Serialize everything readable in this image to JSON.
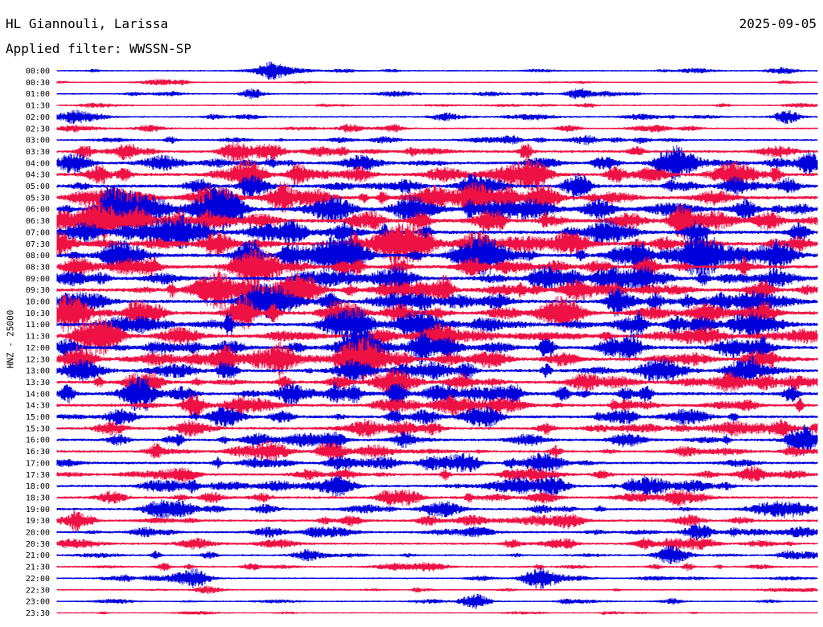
{
  "header": {
    "station": "HL Giannouli, Larissa",
    "date": "2025-09-05",
    "filter": "Applied filter: WWSSN-SP"
  },
  "chart_data": {
    "type": "line",
    "title": "HL Giannouli, Larissa",
    "subtitle": "Applied filter: WWSSN-SP",
    "date": "2025-09-05",
    "ylabel": "HNZ - 25000",
    "line_labels": [
      "00:00",
      "00:30",
      "01:00",
      "01:30",
      "02:00",
      "02:30",
      "03:00",
      "03:30",
      "04:00",
      "04:30",
      "05:00",
      "05:30",
      "06:00",
      "06:30",
      "07:00",
      "07:30",
      "08:00",
      "08:30",
      "09:00",
      "09:30",
      "10:00",
      "10:30",
      "11:00",
      "11:30",
      "12:00",
      "12:30",
      "13:00",
      "13:30",
      "14:00",
      "14:30",
      "15:00",
      "15:30",
      "16:00",
      "16:30",
      "17:00",
      "17:30",
      "18:00",
      "18:30",
      "19:00",
      "19:30",
      "20:00",
      "20:30",
      "21:00",
      "21:30",
      "22:00",
      "22:30",
      "23:00",
      "23:30"
    ],
    "line_colors": [
      "#0000dd",
      "#ee1144"
    ],
    "activity": [
      0.5,
      0.35,
      0.5,
      0.5,
      0.7,
      0.7,
      0.9,
      1.3,
      1.6,
      1.8,
      1.8,
      2.0,
      2.2,
      2.2,
      2.1,
      2.2,
      2.2,
      2.0,
      2.0,
      1.9,
      2.0,
      2.1,
      2.0,
      2.0,
      1.9,
      2.0,
      1.8,
      1.7,
      1.8,
      1.6,
      1.6,
      1.5,
      1.4,
      1.2,
      1.3,
      1.2,
      1.3,
      1.3,
      1.2,
      1.2,
      1.1,
      1.0,
      0.8,
      0.8,
      0.6,
      0.5,
      0.5,
      0.35
    ],
    "events": [
      {
        "line": "00:00",
        "minute": 8.5,
        "amplitude": 10
      },
      {
        "line": "01:00",
        "minute": 7.7,
        "amplitude": 6
      },
      {
        "line": "01:00",
        "minute": 20.6,
        "amplitude": 7
      },
      {
        "line": "02:00",
        "minute": 28.8,
        "amplitude": 8
      },
      {
        "line": "03:30",
        "minute": 8.4,
        "amplitude": 10
      },
      {
        "line": "04:00",
        "minute": 24.5,
        "amplitude": 18
      },
      {
        "line": "05:30",
        "minute": 15.0,
        "amplitude": 12
      },
      {
        "line": "06:00",
        "minute": 10.9,
        "amplitude": 16
      },
      {
        "line": "06:00",
        "minute": 13.9,
        "amplitude": 14
      },
      {
        "line": "07:30",
        "minute": 13.2,
        "amplitude": 18
      },
      {
        "line": "08:00",
        "minute": 10.9,
        "amplitude": 22
      },
      {
        "line": "08:00",
        "minute": 16.8,
        "amplitude": 24
      },
      {
        "line": "09:30",
        "minute": 9.4,
        "amplitude": 20
      },
      {
        "line": "10:00",
        "minute": 8.4,
        "amplitude": 20
      },
      {
        "line": "10:30",
        "minute": 19.8,
        "amplitude": 18
      },
      {
        "line": "11:00",
        "minute": 14.4,
        "amplitude": 16
      },
      {
        "line": "12:00",
        "minute": 12.0,
        "amplitude": 22
      },
      {
        "line": "12:30",
        "minute": 12.0,
        "amplitude": 20
      },
      {
        "line": "13:30",
        "minute": 26.5,
        "amplitude": 12
      },
      {
        "line": "14:00",
        "minute": 3.2,
        "amplitude": 16
      },
      {
        "line": "15:00",
        "minute": 2.5,
        "amplitude": 10
      },
      {
        "line": "16:30",
        "minute": 10.9,
        "amplitude": 10
      },
      {
        "line": "17:00",
        "minute": 16.1,
        "amplitude": 10
      },
      {
        "line": "18:00",
        "minute": 11.1,
        "amplitude": 12
      },
      {
        "line": "18:00",
        "minute": 19.5,
        "amplitude": 12
      },
      {
        "line": "19:00",
        "minute": 4.9,
        "amplitude": 10
      },
      {
        "line": "19:00",
        "minute": 4.0,
        "amplitude": 8
      },
      {
        "line": "20:00",
        "minute": 25.3,
        "amplitude": 10
      },
      {
        "line": "21:00",
        "minute": 24.2,
        "amplitude": 9
      },
      {
        "line": "22:00",
        "minute": 19.0,
        "amplitude": 12
      },
      {
        "line": "22:00",
        "minute": 5.5,
        "amplitude": 10
      },
      {
        "line": "23:00",
        "minute": 16.5,
        "amplitude": 9
      }
    ],
    "x_minutes_per_line": 30,
    "grid": false,
    "legend": "none"
  }
}
